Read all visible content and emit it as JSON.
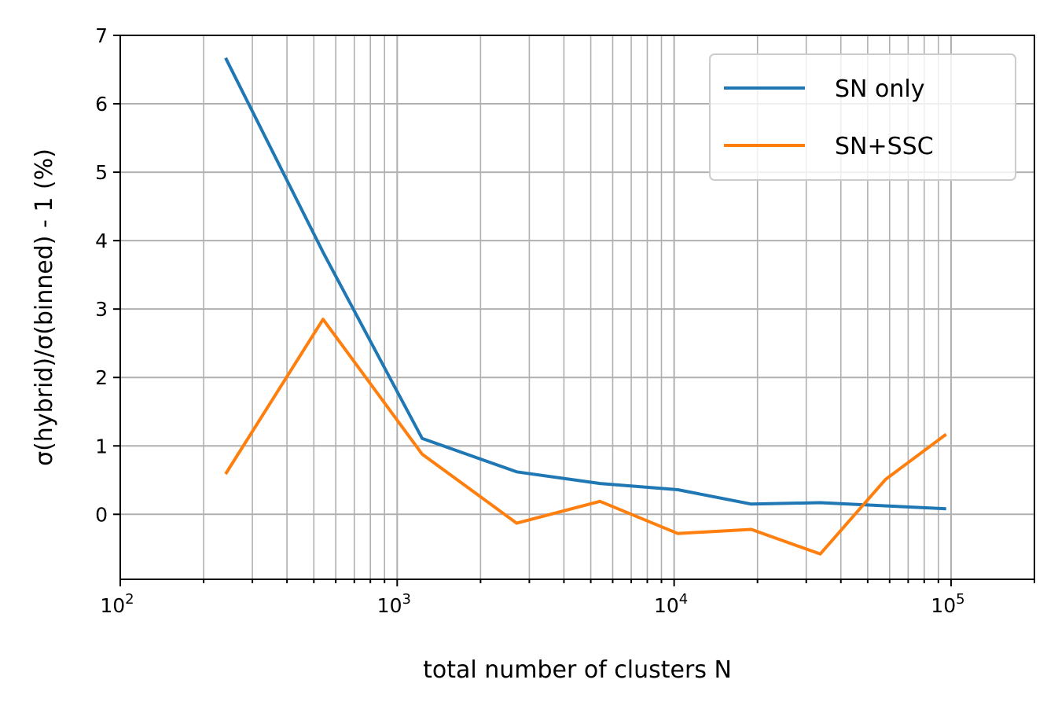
{
  "chart_data": {
    "type": "line",
    "title": "",
    "xlabel": "total number of clusters N",
    "ylabel": "σ(hybrid)/σ(binned) - 1 (%)",
    "xscale": "log",
    "xlim": [
      100,
      200000
    ],
    "ylim": [
      -0.95,
      7
    ],
    "x_ticks": [
      {
        "value": 100,
        "base": "10",
        "exp": "2"
      },
      {
        "value": 1000,
        "base": "10",
        "exp": "3"
      },
      {
        "value": 10000,
        "base": "10",
        "exp": "4"
      },
      {
        "value": 100000,
        "base": "10",
        "exp": "5"
      }
    ],
    "y_ticks": [
      "0",
      "1",
      "2",
      "3",
      "4",
      "5",
      "6",
      "7"
    ],
    "grid": true,
    "grid_color": "#b0b0b0",
    "legend_position": "top-right",
    "series": [
      {
        "name": "SN only",
        "color": "#1f77b4",
        "x": [
          240,
          540,
          1230,
          2700,
          5400,
          10300,
          19000,
          33700,
          96000
        ],
        "y": [
          6.67,
          3.83,
          1.11,
          0.62,
          0.45,
          0.36,
          0.15,
          0.17,
          0.08
        ]
      },
      {
        "name": "SN+SSC",
        "color": "#ff7f0e",
        "x": [
          240,
          540,
          1230,
          2700,
          5400,
          10300,
          19000,
          33700,
          58000,
          96000
        ],
        "y": [
          0.59,
          2.85,
          0.88,
          -0.13,
          0.19,
          -0.28,
          -0.22,
          -0.58,
          0.51,
          1.17
        ]
      }
    ]
  }
}
